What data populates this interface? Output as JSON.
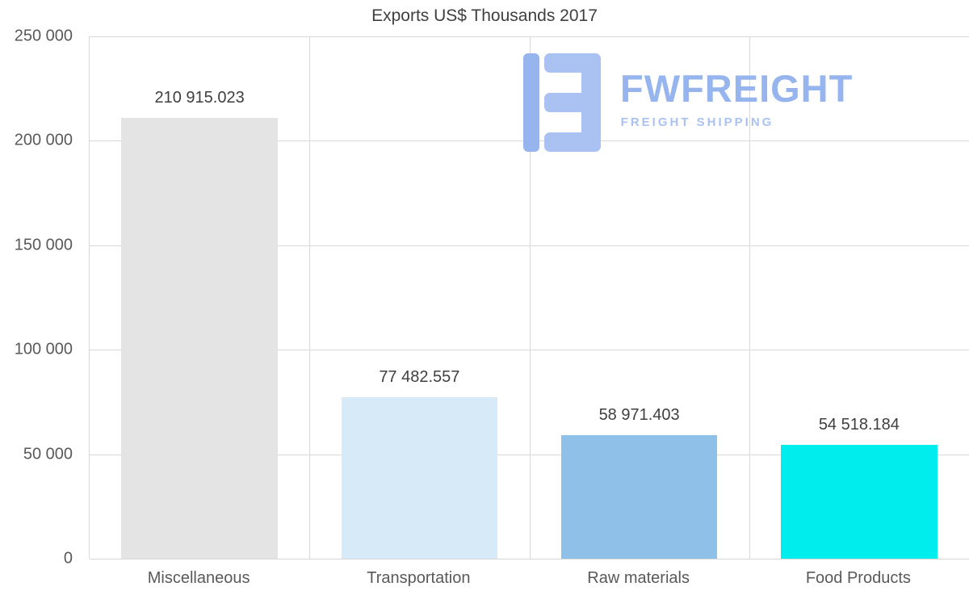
{
  "chart_data": {
    "type": "bar",
    "title": "Exports US$ Thousands 2017",
    "categories": [
      "Miscellaneous",
      "Transportation",
      "Raw materials",
      "Food Products"
    ],
    "values": [
      210915.023,
      77482.557,
      58971.403,
      54518.184
    ],
    "value_labels": [
      "210 915.023",
      "77 482.557",
      "58 971.403",
      "54 518.184"
    ],
    "bar_colors": [
      "#e4e4e4",
      "#d6eaf8",
      "#8fc0e8",
      "#00eded"
    ],
    "ylim": [
      0,
      250000
    ],
    "ytick_labels": [
      "250 000",
      "200 000",
      "150 000",
      "100 000",
      "50 000",
      "0"
    ],
    "xlabel": "",
    "ylabel": "",
    "grid": true,
    "legend": false
  },
  "watermark": {
    "brand": "FWFREIGHT",
    "subtitle": "FREIGHT SHIPPING",
    "color": "#96b4ee",
    "color_light": "#aac2f2"
  }
}
